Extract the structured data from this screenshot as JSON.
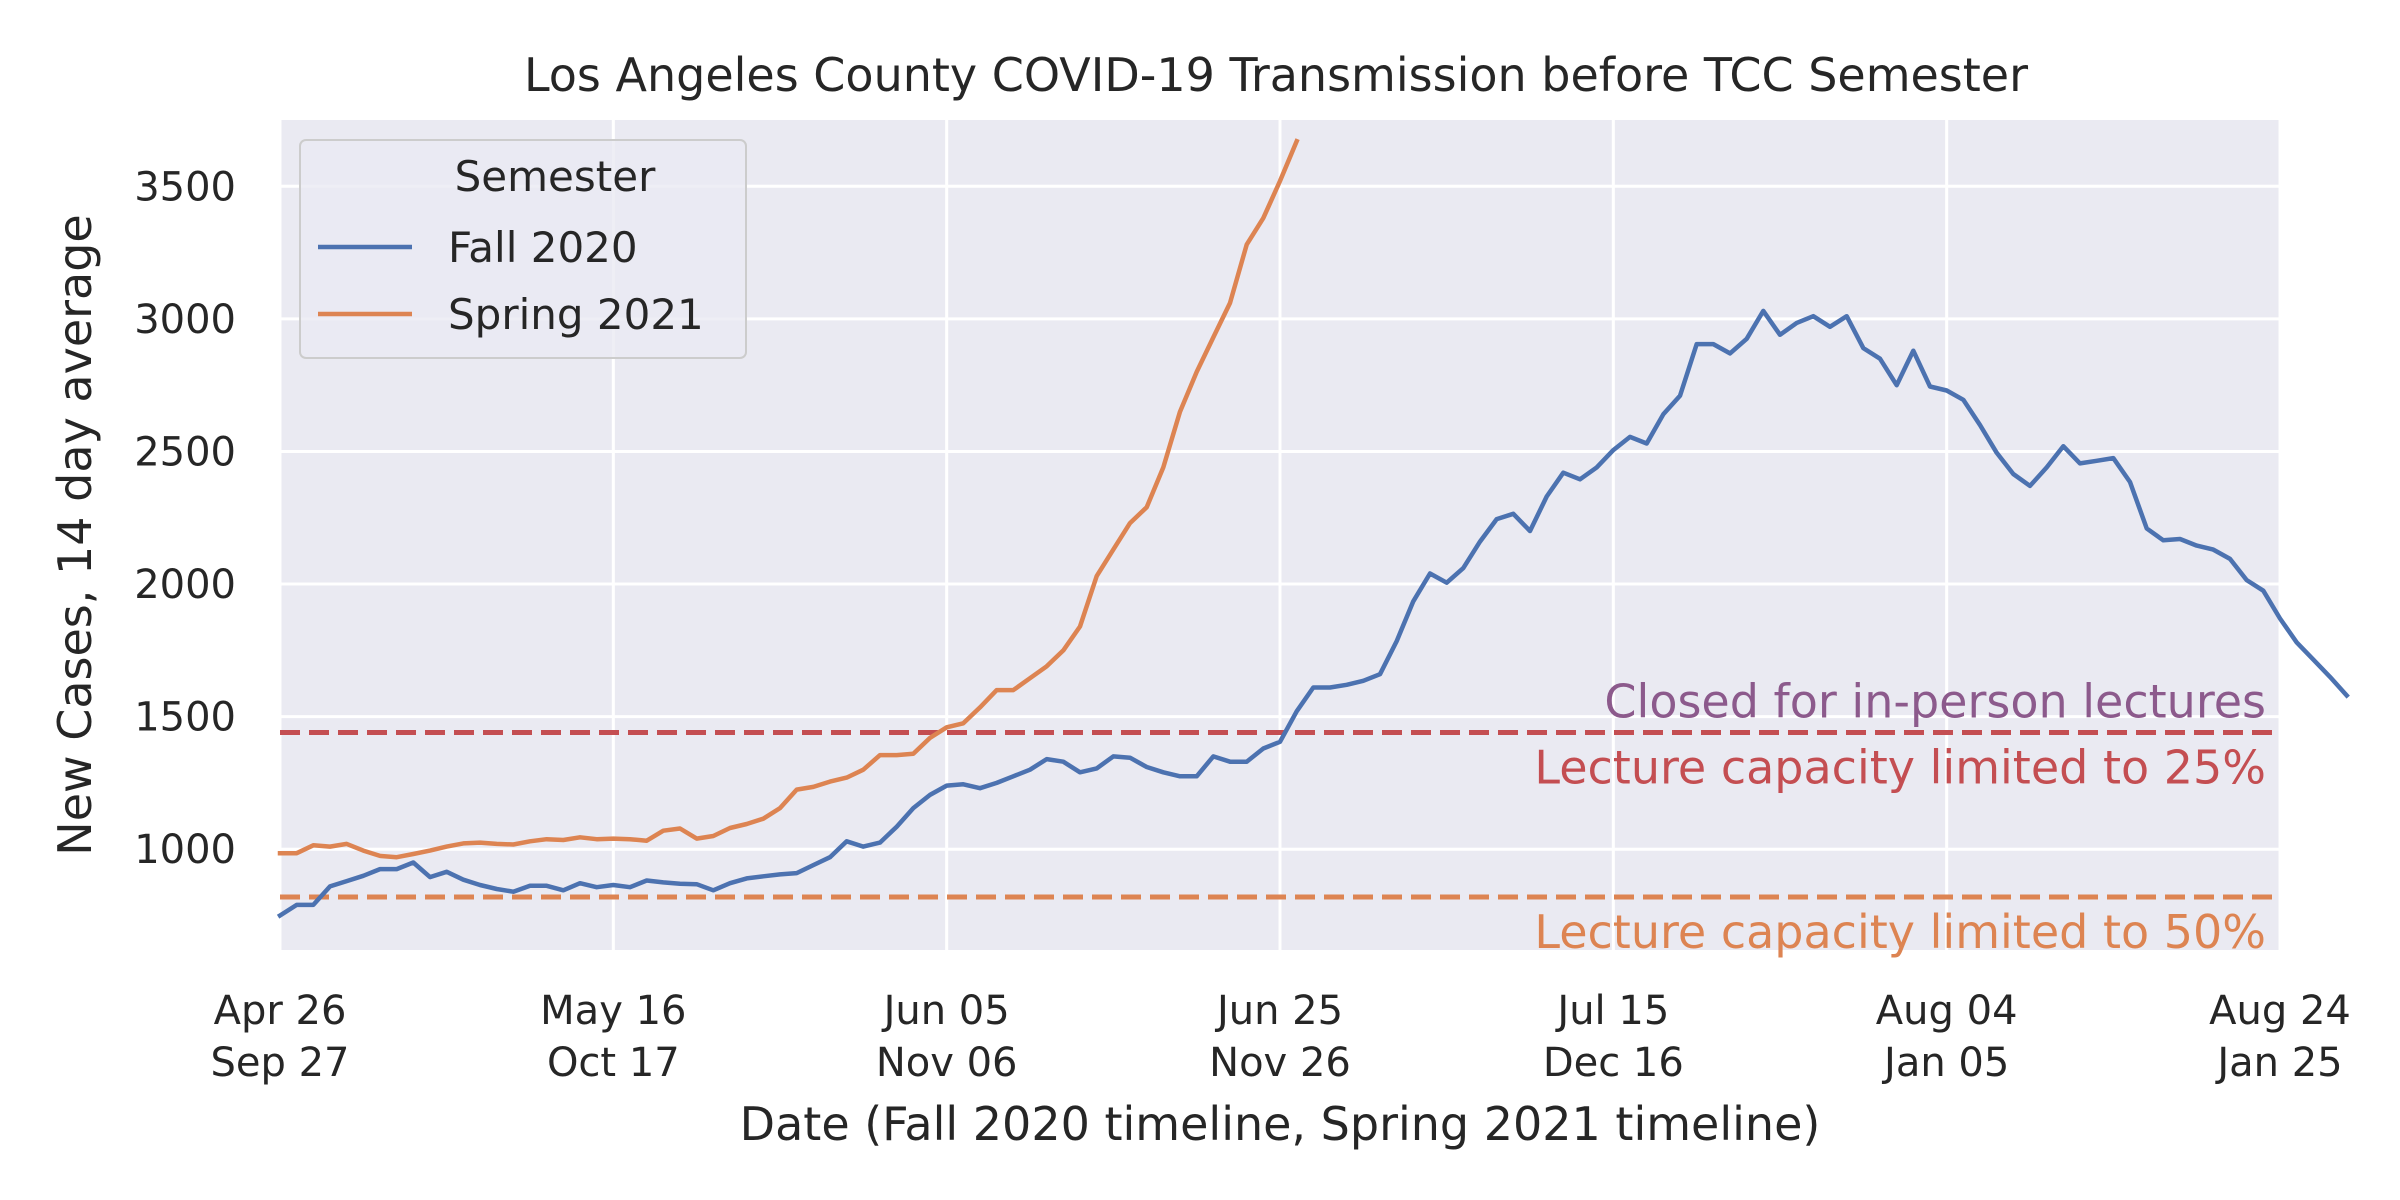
{
  "chart_data": {
    "type": "line",
    "title": "Los Angeles County COVID-19 Transmission before TCC Semester",
    "xlabel": "Date (Fall 2020 timeline, Spring 2021 timeline)",
    "ylabel": "New Cases, 14 day average",
    "x_unit": "days from start (day 0 = Apr 26 / Sep 27)",
    "xlim": [
      0,
      120
    ],
    "ylim": [
      620,
      3750
    ],
    "yticks": [
      1000,
      1500,
      2000,
      2500,
      3000,
      3500
    ],
    "xticks": [
      {
        "x": 0,
        "line1": "Apr 26",
        "line2": "Sep 27"
      },
      {
        "x": 20,
        "line1": "May 16",
        "line2": "Oct 17"
      },
      {
        "x": 40,
        "line1": "Jun 05",
        "line2": "Nov 06"
      },
      {
        "x": 60,
        "line1": "Jun 25",
        "line2": "Nov 26"
      },
      {
        "x": 80,
        "line1": "Jul 15",
        "line2": "Dec 16"
      },
      {
        "x": 100,
        "line1": "Aug 04",
        "line2": "Jan 05"
      },
      {
        "x": 120,
        "line1": "Aug 24",
        "line2": "Jan 25"
      }
    ],
    "grid": true,
    "legend": {
      "title": "Semester",
      "placement": "top-left"
    },
    "series": [
      {
        "name": "Fall 2020",
        "color": "#4c72b0",
        "x_start": 0,
        "values": [
          750,
          790,
          790,
          860,
          880,
          900,
          925,
          925,
          950,
          895,
          915,
          885,
          865,
          850,
          840,
          862,
          862,
          845,
          872,
          857,
          865,
          857,
          882,
          875,
          870,
          868,
          845,
          872,
          890,
          898,
          905,
          910,
          940,
          970,
          1030,
          1010,
          1025,
          1085,
          1155,
          1205,
          1240,
          1245,
          1230,
          1250,
          1275,
          1300,
          1340,
          1330,
          1290,
          1305,
          1350,
          1345,
          1310,
          1290,
          1275,
          1275,
          1350,
          1330,
          1330,
          1380,
          1405,
          1520,
          1610,
          1610,
          1620,
          1635,
          1660,
          1785,
          1935,
          2040,
          2005,
          2060,
          2160,
          2245,
          2265,
          2200,
          2330,
          2420,
          2395,
          2440,
          2505,
          2555,
          2530,
          2640,
          2710,
          2905,
          2905,
          2870,
          2925,
          3030,
          2940,
          2985,
          3010,
          2970,
          3010,
          2890,
          2850,
          2750,
          2880,
          2745,
          2730,
          2695,
          2600,
          2495,
          2415,
          2370,
          2440,
          2520,
          2455,
          2465,
          2475,
          2385,
          2210,
          2165,
          2170,
          2145,
          2130,
          2095,
          2015,
          1975,
          1870,
          1780,
          1715,
          1650,
          1580
        ]
      },
      {
        "name": "Spring 2021",
        "color": "#dd8452",
        "x_start": 0,
        "values": [
          985,
          985,
          1015,
          1010,
          1020,
          995,
          975,
          970,
          982,
          995,
          1010,
          1022,
          1025,
          1020,
          1018,
          1030,
          1038,
          1035,
          1045,
          1038,
          1040,
          1038,
          1032,
          1070,
          1078,
          1040,
          1050,
          1080,
          1095,
          1115,
          1155,
          1225,
          1235,
          1255,
          1270,
          1300,
          1355,
          1355,
          1360,
          1420,
          1460,
          1475,
          1535,
          1600,
          1600,
          1645,
          1690,
          1750,
          1840,
          2030,
          2130,
          2230,
          2290,
          2440,
          2650,
          2800,
          2930,
          3060,
          3280,
          3380,
          3520,
          3670
        ]
      }
    ],
    "reference_lines": [
      {
        "y": 1440,
        "color": "#c44e52",
        "label": "Lecture capacity limited to 25%",
        "label_color": "#c44e52"
      },
      {
        "y": 820,
        "color": "#dd8452",
        "label": "Lecture capacity limited to 50%",
        "label_color": "#dd8452"
      }
    ],
    "annotations": [
      {
        "text": "Closed for in-person lectures",
        "color": "#8c5a8c",
        "y": 1505
      }
    ]
  }
}
